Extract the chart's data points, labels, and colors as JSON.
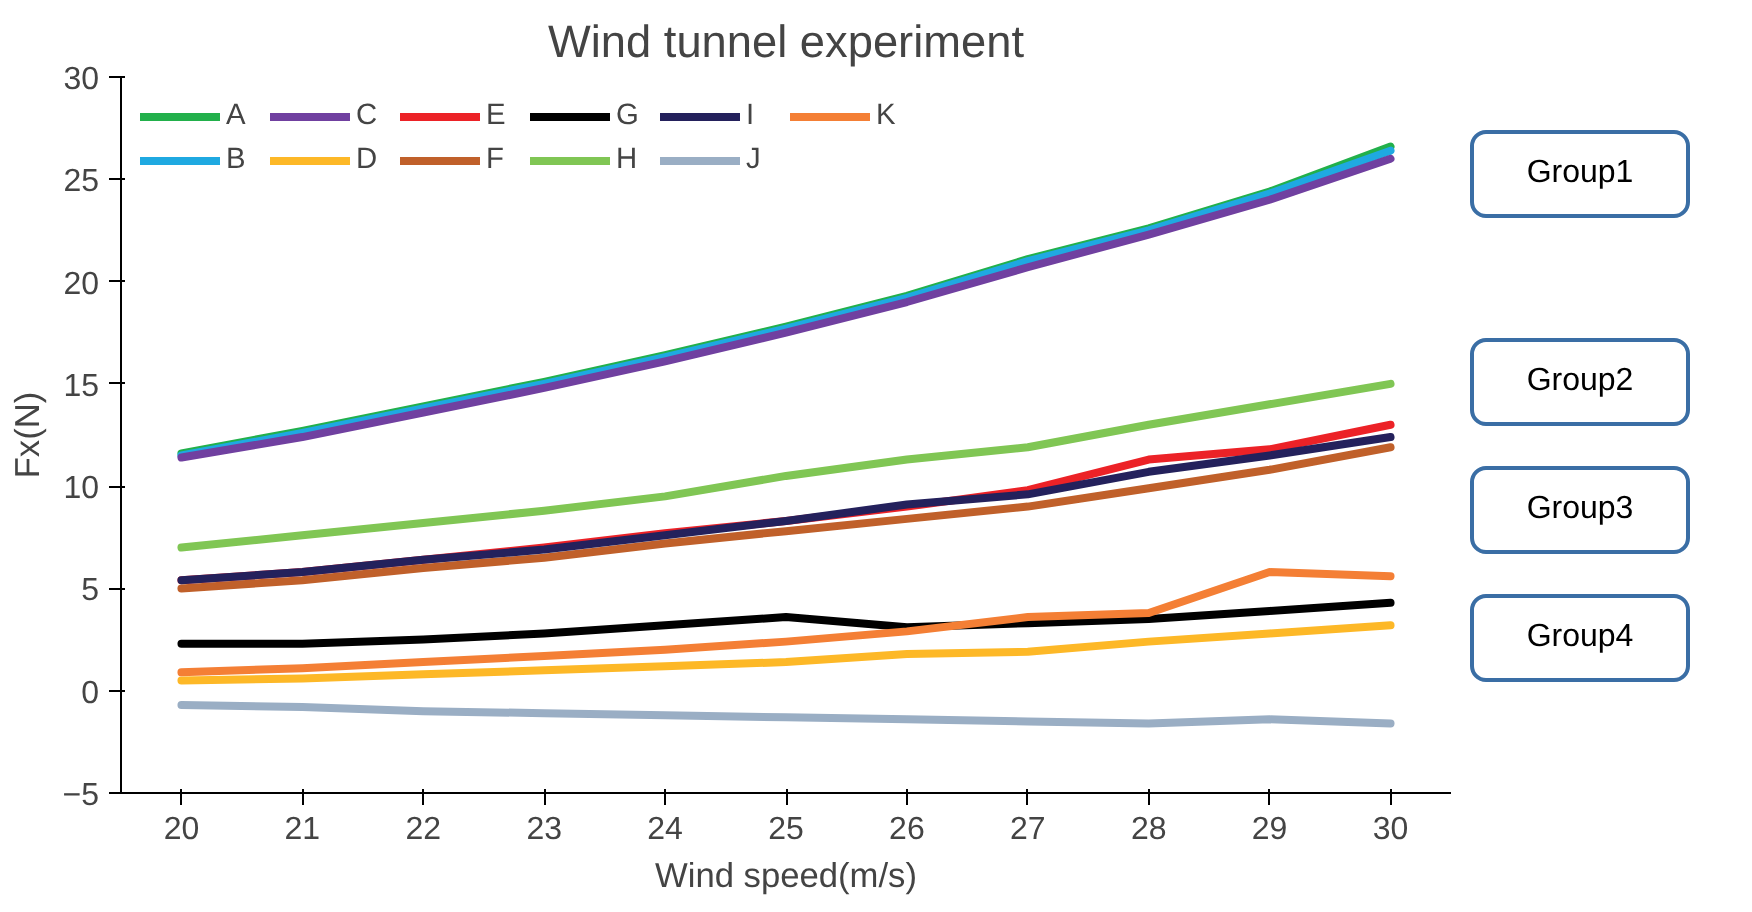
{
  "chart_data": {
    "type": "line",
    "title": "Wind tunnel experiment",
    "xlabel": "Wind speed(m/s)",
    "ylabel": "Fx(N)",
    "x": [
      20,
      21,
      22,
      23,
      24,
      25,
      26,
      27,
      28,
      29,
      30
    ],
    "series": [
      {
        "name": "A",
        "color": "#22b04b",
        "values": [
          11.6,
          12.7,
          13.9,
          15.1,
          16.4,
          17.8,
          19.3,
          21.1,
          22.6,
          24.4,
          26.6
        ]
      },
      {
        "name": "B",
        "color": "#1fa9e1",
        "values": [
          11.5,
          12.6,
          13.8,
          15.0,
          16.3,
          17.7,
          19.2,
          21.0,
          22.5,
          24.3,
          26.4
        ]
      },
      {
        "name": "C",
        "color": "#7040a0",
        "values": [
          11.4,
          12.4,
          13.6,
          14.8,
          16.1,
          17.5,
          19.0,
          20.7,
          22.3,
          24.0,
          26.0
        ]
      },
      {
        "name": "D",
        "color": "#fdb827",
        "values": [
          0.5,
          0.6,
          0.8,
          1.0,
          1.2,
          1.4,
          1.8,
          1.9,
          2.4,
          2.8,
          3.2
        ]
      },
      {
        "name": "E",
        "color": "#ec2227",
        "values": [
          5.4,
          5.8,
          6.4,
          7.0,
          7.7,
          8.3,
          9.0,
          9.8,
          11.3,
          11.8,
          13.0
        ]
      },
      {
        "name": "F",
        "color": "#c0602a",
        "values": [
          5.0,
          5.4,
          6.0,
          6.5,
          7.2,
          7.8,
          8.4,
          9.0,
          9.9,
          10.8,
          11.9
        ]
      },
      {
        "name": "G",
        "color": "#000000",
        "values": [
          2.3,
          2.3,
          2.5,
          2.8,
          3.2,
          3.6,
          3.1,
          3.3,
          3.5,
          3.9,
          4.3
        ]
      },
      {
        "name": "H",
        "color": "#80c654",
        "values": [
          7.0,
          7.6,
          8.2,
          8.8,
          9.5,
          10.5,
          11.3,
          11.9,
          13.0,
          14.0,
          15.0
        ]
      },
      {
        "name": "I",
        "color": "#24215c",
        "values": [
          5.4,
          5.8,
          6.4,
          6.9,
          7.6,
          8.3,
          9.1,
          9.6,
          10.7,
          11.5,
          12.4
        ]
      },
      {
        "name": "J",
        "color": "#9aaec4",
        "values": [
          -0.7,
          -0.8,
          -1.0,
          -1.1,
          -1.2,
          -1.3,
          -1.4,
          -1.5,
          -1.6,
          -1.4,
          -1.6
        ]
      },
      {
        "name": "K",
        "color": "#f47f35",
        "values": [
          0.9,
          1.1,
          1.4,
          1.7,
          2.0,
          2.4,
          2.9,
          3.6,
          3.8,
          5.8,
          5.6
        ]
      }
    ],
    "xlim": [
      19.5,
      30.5
    ],
    "xticks": [
      20,
      21,
      22,
      23,
      24,
      25,
      26,
      27,
      28,
      29,
      30
    ],
    "ylim": [
      -5,
      30
    ],
    "yticks": [
      -5,
      0,
      5,
      10,
      15,
      20,
      25,
      30
    ],
    "annotations": [
      "Group1",
      "Group2",
      "Group3",
      "Group4"
    ],
    "legend": "top left",
    "grid": false,
    "marker": "none",
    "line_style": "solid"
  }
}
